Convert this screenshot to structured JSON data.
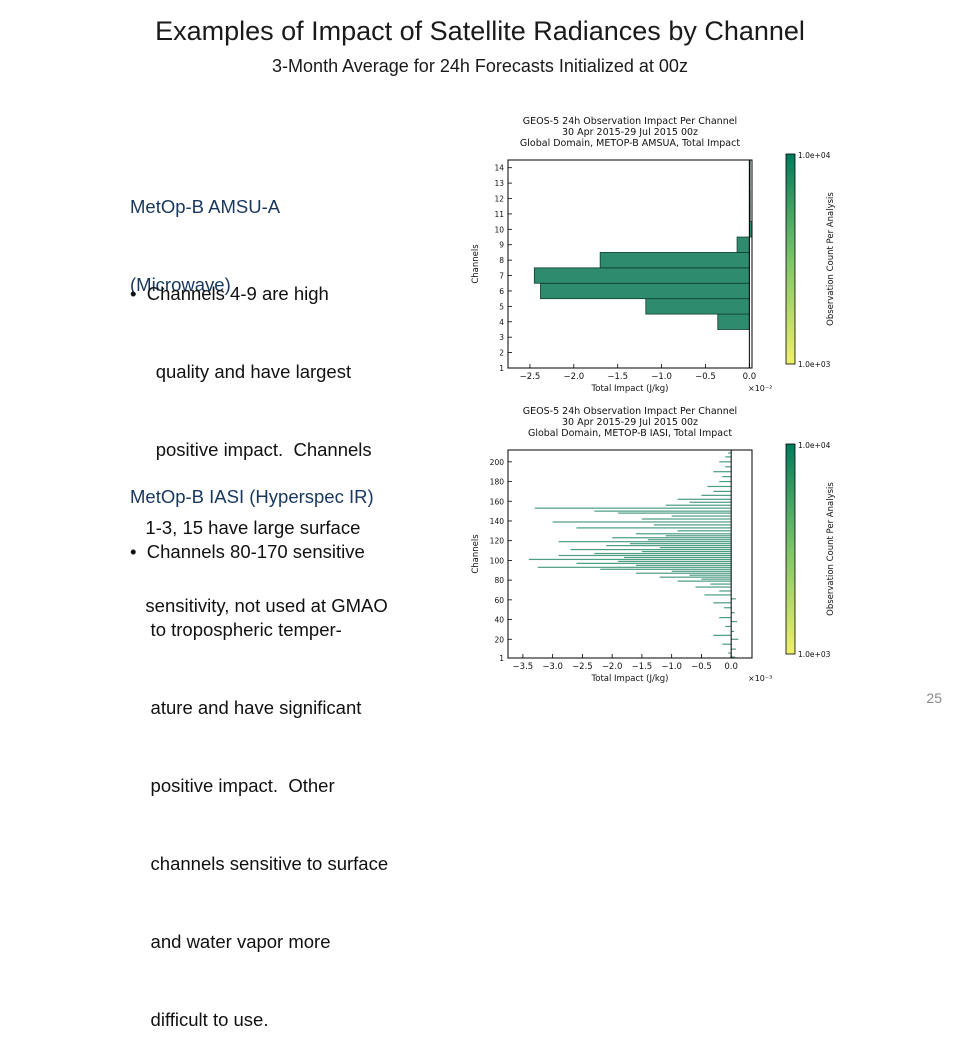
{
  "slide": {
    "title": "Examples of Impact of Satellite Radiances by Channel",
    "subtitle": "3-Month Average for 24h Forecasts Initialized at 00z",
    "page_number": "25"
  },
  "text_blocks": [
    {
      "heading_lines": [
        "MetOp-B AMSU-A",
        "(Microwave)"
      ],
      "bullet_lines": [
        "•  Channels 4-9 are high",
        "     quality and have largest",
        "     positive impact.  Channels",
        "   1-3, 15 have large surface",
        "   sensitivity, not used at GMAO"
      ]
    },
    {
      "heading_lines": [
        "MetOp-B IASI (Hyperspec IR)"
      ],
      "bullet_lines": [
        "•  Channels 80-170 sensitive",
        "    to tropospheric temper-",
        "    ature and have significant",
        "    positive impact.  Other",
        "    channels sensitive to surface",
        "    and water vapor more",
        "    difficult to use."
      ]
    }
  ],
  "colors": {
    "heading": "#17375e",
    "bar_fill": "#2e8b6e",
    "colorbar_low": "#f0f06a",
    "colorbar_high": "#007a5c"
  },
  "chart_data": [
    {
      "type": "bar",
      "orientation": "horizontal",
      "title_lines": [
        "GEOS-5 24h Observation Impact Per Channel",
        "30 Apr 2015-29 Jul 2015 00z",
        "Global Domain, METOP-B AMSUA, Total Impact"
      ],
      "xlabel": "Total Impact (J/kg)",
      "x_multiplier": "×10⁻²",
      "ylabel": "Channels",
      "xlim": [
        -2.75,
        0.03
      ],
      "ylim": [
        1,
        14.5
      ],
      "xticks": [
        -2.5,
        -2.0,
        -1.5,
        -1.0,
        -0.5,
        0.0
      ],
      "xtick_labels": [
        "−2.5",
        "−2.0",
        "−1.5",
        "−1.0",
        "−0.5",
        "0.0"
      ],
      "yticks": [
        1,
        2,
        3,
        4,
        5,
        6,
        7,
        8,
        9,
        10,
        11,
        12,
        13,
        14
      ],
      "bars": [
        {
          "channel": 4,
          "value": -0.36
        },
        {
          "channel": 5,
          "value": -1.18
        },
        {
          "channel": 6,
          "value": -2.38
        },
        {
          "channel": 7,
          "value": -2.45
        },
        {
          "channel": 8,
          "value": -1.7
        },
        {
          "channel": 9,
          "value": -0.14
        },
        {
          "channel": 10,
          "value": 0.03
        },
        {
          "channel": 11,
          "value": 0.01
        },
        {
          "channel": 12,
          "value": 0.01
        },
        {
          "channel": 13,
          "value": 0.005
        },
        {
          "channel": 14,
          "value": 0.003
        }
      ],
      "colorbar": {
        "label": "Observation Count Per Analysis",
        "max_label": "1.0e+04",
        "min_label": "1.0e+03"
      }
    },
    {
      "type": "bar",
      "orientation": "horizontal",
      "title_lines": [
        "GEOS-5 24h Observation Impact Per Channel",
        "30 Apr 2015-29 Jul 2015 00z",
        "Global Domain, METOP-B IASI, Total Impact"
      ],
      "xlabel": "Total Impact (J/kg)",
      "x_multiplier": "×10⁻³",
      "ylabel": "Channels",
      "xlim": [
        -3.75,
        0.35
      ],
      "ylim": [
        1,
        212
      ],
      "xticks": [
        -3.5,
        -3.0,
        -2.5,
        -2.0,
        -1.5,
        -1.0,
        -0.5,
        0.0
      ],
      "xtick_labels": [
        "−3.5",
        "−3.0",
        "−2.5",
        "−2.0",
        "−1.5",
        "−1.0",
        "−0.5",
        "0.0"
      ],
      "yticks": [
        1,
        20,
        40,
        60,
        80,
        100,
        120,
        140,
        160,
        180,
        200
      ],
      "bars": [
        {
          "channel": 2,
          "value": 0.06
        },
        {
          "channel": 6,
          "value": -0.05
        },
        {
          "channel": 10,
          "value": 0.08
        },
        {
          "channel": 15,
          "value": -0.15
        },
        {
          "channel": 20,
          "value": 0.12
        },
        {
          "channel": 24,
          "value": -0.3
        },
        {
          "channel": 28,
          "value": 0.05
        },
        {
          "channel": 33,
          "value": -0.1
        },
        {
          "channel": 38,
          "value": 0.1
        },
        {
          "channel": 42,
          "value": -0.2
        },
        {
          "channel": 47,
          "value": 0.06
        },
        {
          "channel": 52,
          "value": -0.12
        },
        {
          "channel": 57,
          "value": -0.3
        },
        {
          "channel": 61,
          "value": 0.08
        },
        {
          "channel": 65,
          "value": -0.45
        },
        {
          "channel": 69,
          "value": -0.2
        },
        {
          "channel": 73,
          "value": -0.6
        },
        {
          "channel": 76,
          "value": -0.35
        },
        {
          "channel": 79,
          "value": -0.9
        },
        {
          "channel": 81,
          "value": -0.5
        },
        {
          "channel": 83,
          "value": -1.2
        },
        {
          "channel": 85,
          "value": -0.7
        },
        {
          "channel": 87,
          "value": -1.6
        },
        {
          "channel": 89,
          "value": -1.0
        },
        {
          "channel": 91,
          "value": -2.2
        },
        {
          "channel": 93,
          "value": -3.25
        },
        {
          "channel": 95,
          "value": -1.6
        },
        {
          "channel": 97,
          "value": -2.6
        },
        {
          "channel": 99,
          "value": -1.9
        },
        {
          "channel": 101,
          "value": -3.4
        },
        {
          "channel": 103,
          "value": -1.8
        },
        {
          "channel": 105,
          "value": -2.9
        },
        {
          "channel": 107,
          "value": -2.3
        },
        {
          "channel": 109,
          "value": -1.5
        },
        {
          "channel": 111,
          "value": -2.7
        },
        {
          "channel": 113,
          "value": -1.2
        },
        {
          "channel": 115,
          "value": -2.1
        },
        {
          "channel": 117,
          "value": -1.7
        },
        {
          "channel": 119,
          "value": -2.9
        },
        {
          "channel": 121,
          "value": -1.4
        },
        {
          "channel": 123,
          "value": -2.0
        },
        {
          "channel": 125,
          "value": -1.1
        },
        {
          "channel": 127,
          "value": -1.6
        },
        {
          "channel": 130,
          "value": -0.9
        },
        {
          "channel": 133,
          "value": -2.6
        },
        {
          "channel": 136,
          "value": -1.3
        },
        {
          "channel": 139,
          "value": -3.0
        },
        {
          "channel": 142,
          "value": -1.5
        },
        {
          "channel": 145,
          "value": -1.0
        },
        {
          "channel": 148,
          "value": -1.9
        },
        {
          "channel": 150,
          "value": -2.3
        },
        {
          "channel": 153,
          "value": -3.3
        },
        {
          "channel": 156,
          "value": -1.1
        },
        {
          "channel": 159,
          "value": -0.7
        },
        {
          "channel": 162,
          "value": -0.9
        },
        {
          "channel": 166,
          "value": -0.5
        },
        {
          "channel": 170,
          "value": -0.3
        },
        {
          "channel": 175,
          "value": -0.4
        },
        {
          "channel": 180,
          "value": -0.2
        },
        {
          "channel": 185,
          "value": -0.15
        },
        {
          "channel": 190,
          "value": -0.3
        },
        {
          "channel": 195,
          "value": -0.1
        },
        {
          "channel": 200,
          "value": -0.2
        },
        {
          "channel": 205,
          "value": -0.1
        },
        {
          "channel": 209,
          "value": -0.05
        }
      ],
      "colorbar": {
        "label": "Observation Count Per Analysis",
        "max_label": "1.0e+04",
        "min_label": "1.0e+03"
      }
    }
  ]
}
